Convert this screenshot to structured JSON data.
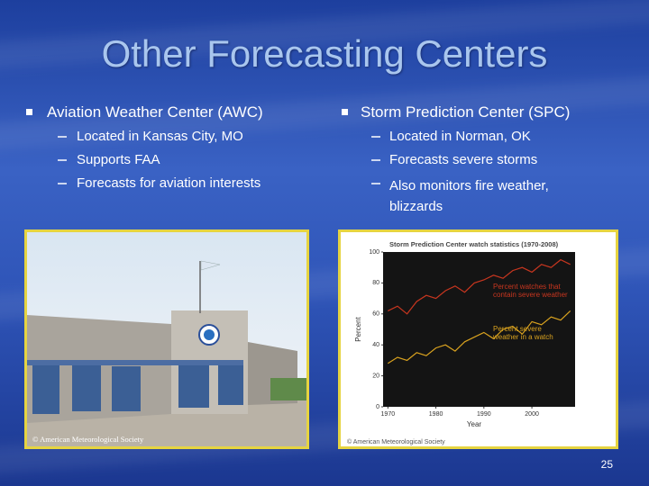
{
  "title": "Other Forecasting Centers",
  "columns": [
    {
      "heading": "Aviation Weather Center (AWC)",
      "items": [
        "Located in Kansas City, MO",
        "Supports FAA",
        "Forecasts for aviation interests"
      ],
      "image_caption": "© American Meteorological Society"
    },
    {
      "heading": "Storm Prediction Center (SPC)",
      "items": [
        "Located in Norman, OK",
        "Forecasts severe storms",
        "Also monitors fire weather, blizzards"
      ],
      "image_caption": "© American Meteorological Society"
    }
  ],
  "slide_number": "25",
  "chart_data": {
    "type": "line",
    "title": "Storm Prediction Center watch statistics (1970-2008)",
    "x_label": "Year",
    "y_label": "Percent",
    "x": [
      1970,
      1972,
      1974,
      1976,
      1978,
      1980,
      1982,
      1984,
      1986,
      1988,
      1990,
      1992,
      1994,
      1996,
      1998,
      2000,
      2002,
      2004,
      2006,
      2008
    ],
    "series": [
      {
        "name": "Percent watches that contain severe weather",
        "color": "#c8361f",
        "values": [
          62,
          65,
          60,
          68,
          72,
          70,
          75,
          78,
          74,
          80,
          82,
          85,
          83,
          88,
          90,
          87,
          92,
          90,
          95,
          92
        ]
      },
      {
        "name": "Percent severe weather in a watch",
        "color": "#d9a21f",
        "values": [
          28,
          32,
          30,
          35,
          33,
          38,
          40,
          36,
          42,
          45,
          48,
          44,
          50,
          52,
          47,
          55,
          53,
          58,
          56,
          62
        ]
      }
    ],
    "xlim": [
      1969,
      2009
    ],
    "ylim": [
      0,
      100
    ],
    "xticks": [
      1970,
      1980,
      1990,
      2000
    ],
    "yticks": [
      0,
      20,
      40,
      60,
      80,
      100
    ]
  }
}
